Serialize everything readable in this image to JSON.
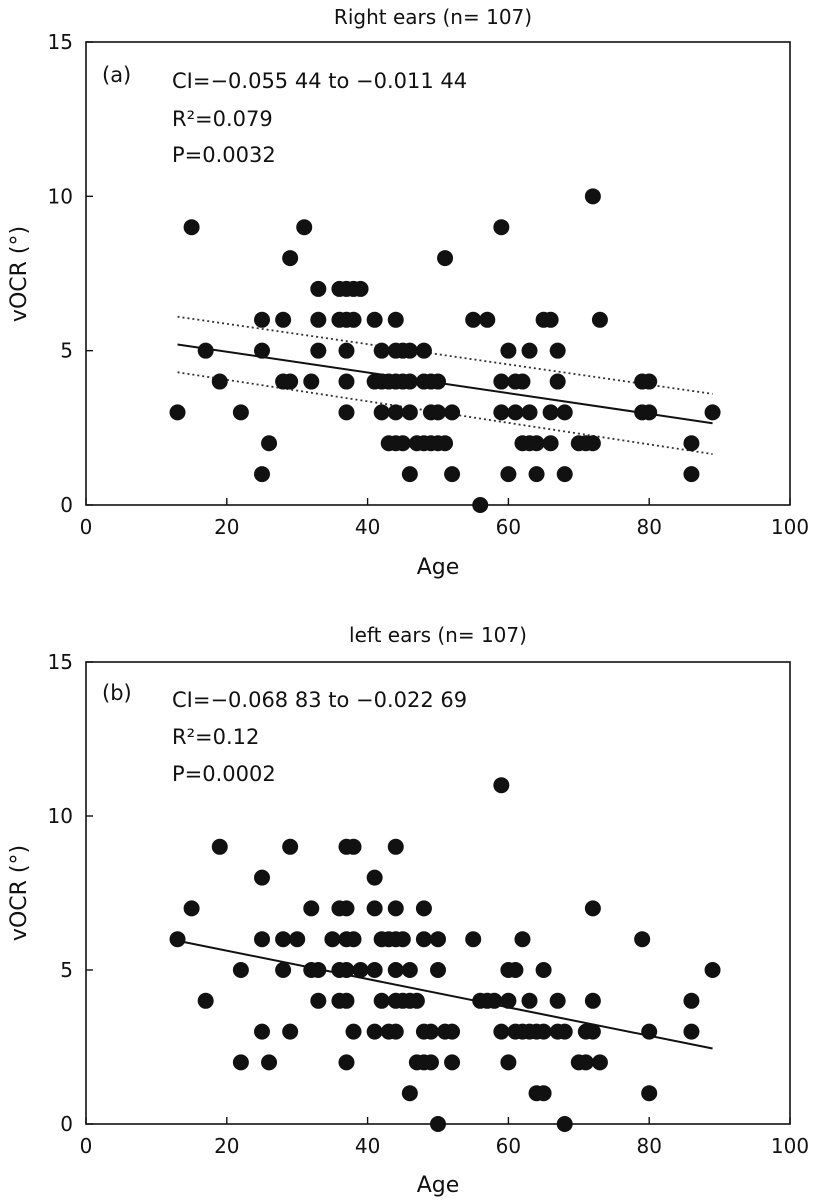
{
  "chart_data": [
    {
      "type": "scatter",
      "title": "Right ears (n= 107)",
      "panel_label": "(a)",
      "xlabel": "Age",
      "ylabel": "vOCR (°)",
      "xlim": [
        0,
        100
      ],
      "ylim": [
        0,
        15
      ],
      "xticks": [
        0,
        20,
        40,
        60,
        80,
        100
      ],
      "yticks": [
        0,
        5,
        10,
        15
      ],
      "annotations": [
        "CI=−0.055 44 to −0.011 44",
        "R²=0.079",
        "P=0.0032"
      ],
      "fit_line": {
        "x": [
          13,
          89
        ],
        "y": [
          5.2,
          2.65
        ]
      },
      "ci_upper": {
        "x": [
          13,
          89
        ],
        "y": [
          6.1,
          3.6
        ]
      },
      "ci_lower": {
        "x": [
          13,
          89
        ],
        "y": [
          4.3,
          1.65
        ]
      },
      "points": [
        [
          13,
          3
        ],
        [
          15,
          9
        ],
        [
          17,
          5
        ],
        [
          19,
          4
        ],
        [
          22,
          3
        ],
        [
          25,
          6
        ],
        [
          25,
          5
        ],
        [
          25,
          1
        ],
        [
          26,
          2
        ],
        [
          28,
          6
        ],
        [
          28,
          4
        ],
        [
          29,
          8
        ],
        [
          29,
          4
        ],
        [
          31,
          9
        ],
        [
          32,
          4
        ],
        [
          33,
          7
        ],
        [
          33,
          6
        ],
        [
          33,
          5
        ],
        [
          36,
          7
        ],
        [
          36,
          6
        ],
        [
          37,
          7
        ],
        [
          37,
          6
        ],
        [
          37,
          5
        ],
        [
          37,
          4
        ],
        [
          37,
          3
        ],
        [
          38,
          7
        ],
        [
          38,
          6
        ],
        [
          39,
          7
        ],
        [
          41,
          6
        ],
        [
          41,
          4
        ],
        [
          42,
          5
        ],
        [
          42,
          4
        ],
        [
          42,
          3
        ],
        [
          43,
          4
        ],
        [
          43,
          2
        ],
        [
          44,
          6
        ],
        [
          44,
          5
        ],
        [
          44,
          4
        ],
        [
          44,
          3
        ],
        [
          44,
          2
        ],
        [
          45,
          5
        ],
        [
          45,
          4
        ],
        [
          45,
          2
        ],
        [
          46,
          5
        ],
        [
          46,
          4
        ],
        [
          46,
          3
        ],
        [
          46,
          1
        ],
        [
          47,
          2
        ],
        [
          48,
          5
        ],
        [
          48,
          4
        ],
        [
          48,
          2
        ],
        [
          49,
          4
        ],
        [
          49,
          3
        ],
        [
          49,
          2
        ],
        [
          50,
          4
        ],
        [
          50,
          3
        ],
        [
          50,
          2
        ],
        [
          51,
          8
        ],
        [
          51,
          2
        ],
        [
          52,
          3
        ],
        [
          52,
          1
        ],
        [
          55,
          6
        ],
        [
          56,
          0
        ],
        [
          57,
          6
        ],
        [
          59,
          9
        ],
        [
          59,
          4
        ],
        [
          59,
          3
        ],
        [
          60,
          5
        ],
        [
          60,
          1
        ],
        [
          61,
          4
        ],
        [
          61,
          3
        ],
        [
          62,
          4
        ],
        [
          62,
          2
        ],
        [
          63,
          5
        ],
        [
          63,
          3
        ],
        [
          63,
          2
        ],
        [
          64,
          2
        ],
        [
          64,
          1
        ],
        [
          65,
          6
        ],
        [
          66,
          6
        ],
        [
          66,
          3
        ],
        [
          66,
          2
        ],
        [
          67,
          5
        ],
        [
          67,
          4
        ],
        [
          68,
          3
        ],
        [
          68,
          1
        ],
        [
          70,
          2
        ],
        [
          71,
          2
        ],
        [
          72,
          10
        ],
        [
          72,
          2
        ],
        [
          73,
          6
        ],
        [
          79,
          4
        ],
        [
          79,
          3
        ],
        [
          80,
          4
        ],
        [
          80,
          3
        ],
        [
          86,
          2
        ],
        [
          86,
          1
        ],
        [
          89,
          3
        ]
      ]
    },
    {
      "type": "scatter",
      "title": "left ears (n= 107)",
      "panel_label": "(b)",
      "xlabel": "Age",
      "ylabel": "vOCR (°)",
      "xlim": [
        0,
        100
      ],
      "ylim": [
        0,
        15
      ],
      "xticks": [
        0,
        20,
        40,
        60,
        80,
        100
      ],
      "yticks": [
        0,
        5,
        10,
        15
      ],
      "annotations": [
        "CI=−0.068 83 to −0.022 69",
        "R²=0.12",
        "P=0.0002"
      ],
      "fit_line": {
        "x": [
          13,
          89
        ],
        "y": [
          5.95,
          2.45
        ]
      },
      "points": [
        [
          13,
          6
        ],
        [
          15,
          7
        ],
        [
          17,
          4
        ],
        [
          19,
          9
        ],
        [
          22,
          5
        ],
        [
          22,
          2
        ],
        [
          25,
          8
        ],
        [
          25,
          6
        ],
        [
          25,
          3
        ],
        [
          26,
          2
        ],
        [
          28,
          6
        ],
        [
          28,
          5
        ],
        [
          29,
          9
        ],
        [
          29,
          3
        ],
        [
          30,
          6
        ],
        [
          32,
          7
        ],
        [
          32,
          5
        ],
        [
          33,
          5
        ],
        [
          33,
          4
        ],
        [
          35,
          6
        ],
        [
          36,
          7
        ],
        [
          36,
          5
        ],
        [
          36,
          4
        ],
        [
          37,
          9
        ],
        [
          37,
          7
        ],
        [
          37,
          6
        ],
        [
          37,
          5
        ],
        [
          37,
          4
        ],
        [
          37,
          2
        ],
        [
          38,
          9
        ],
        [
          38,
          6
        ],
        [
          38,
          3
        ],
        [
          39,
          5
        ],
        [
          41,
          8
        ],
        [
          41,
          7
        ],
        [
          41,
          5
        ],
        [
          41,
          3
        ],
        [
          42,
          6
        ],
        [
          42,
          4
        ],
        [
          43,
          6
        ],
        [
          43,
          3
        ],
        [
          44,
          9
        ],
        [
          44,
          7
        ],
        [
          44,
          6
        ],
        [
          44,
          5
        ],
        [
          44,
          4
        ],
        [
          44,
          3
        ],
        [
          45,
          6
        ],
        [
          45,
          4
        ],
        [
          46,
          5
        ],
        [
          46,
          4
        ],
        [
          46,
          1
        ],
        [
          47,
          4
        ],
        [
          47,
          2
        ],
        [
          48,
          7
        ],
        [
          48,
          6
        ],
        [
          48,
          3
        ],
        [
          48,
          2
        ],
        [
          49,
          3
        ],
        [
          49,
          2
        ],
        [
          50,
          6
        ],
        [
          50,
          5
        ],
        [
          50,
          0
        ],
        [
          51,
          3
        ],
        [
          52,
          3
        ],
        [
          52,
          2
        ],
        [
          55,
          6
        ],
        [
          56,
          4
        ],
        [
          57,
          4
        ],
        [
          58,
          4
        ],
        [
          59,
          11
        ],
        [
          59,
          3
        ],
        [
          60,
          5
        ],
        [
          60,
          4
        ],
        [
          60,
          2
        ],
        [
          61,
          5
        ],
        [
          61,
          3
        ],
        [
          62,
          6
        ],
        [
          62,
          3
        ],
        [
          63,
          4
        ],
        [
          63,
          3
        ],
        [
          64,
          3
        ],
        [
          64,
          1
        ],
        [
          65,
          5
        ],
        [
          65,
          3
        ],
        [
          65,
          1
        ],
        [
          67,
          4
        ],
        [
          67,
          3
        ],
        [
          68,
          0
        ],
        [
          68,
          3
        ],
        [
          70,
          2
        ],
        [
          71,
          2
        ],
        [
          71,
          3
        ],
        [
          72,
          7
        ],
        [
          72,
          4
        ],
        [
          72,
          3
        ],
        [
          73,
          2
        ],
        [
          79,
          6
        ],
        [
          80,
          3
        ],
        [
          80,
          1
        ],
        [
          86,
          4
        ],
        [
          86,
          3
        ],
        [
          89,
          5
        ]
      ]
    }
  ]
}
